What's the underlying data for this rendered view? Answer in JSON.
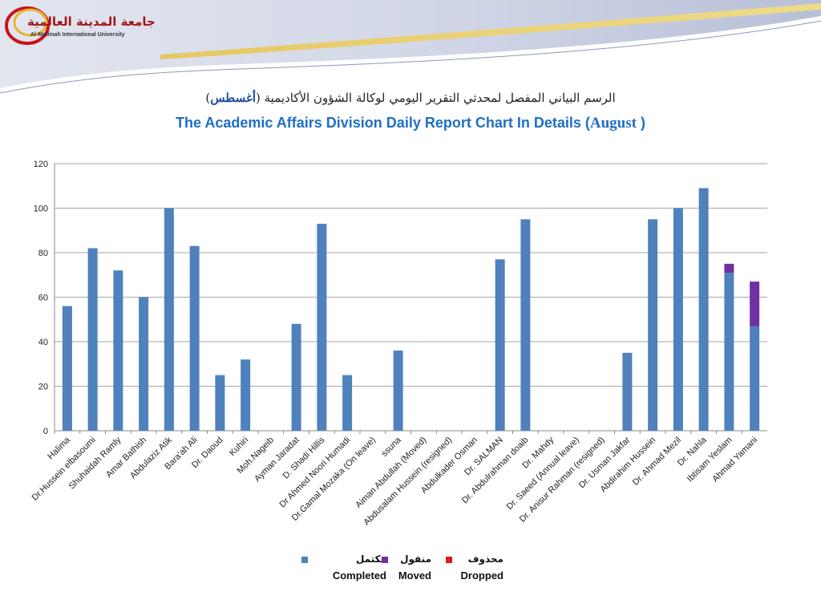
{
  "header": {
    "logo_arabic": "جامعة المدينة العالمية",
    "logo_english": "Al-Madinah International University"
  },
  "title": {
    "arabic": "الرسم البياني المفصل لمحدثي التقرير اليومي لوكالة الشؤون الأكاديمية (",
    "arabic_month": "أغسطس",
    "arabic_close": ")",
    "english": "The Academic Affairs Division Daily Report Chart In Details (",
    "english_month": "August",
    "english_close": " )"
  },
  "colors": {
    "completed": "#4f81bd",
    "moved": "#7030a0",
    "dropped": "#e8141c",
    "grid": "#888888",
    "title_blue": "#1f6fc0"
  },
  "legend": [
    {
      "arabic": "مكتمل",
      "english": "Completed",
      "color": "#4f81bd"
    },
    {
      "arabic": "منقول",
      "english": "Moved",
      "color": "#7030a0"
    },
    {
      "arabic": "محذوف",
      "english": "Dropped",
      "color": "#e8141c"
    }
  ],
  "chart_data": {
    "type": "bar",
    "stacked": true,
    "title": "The Academic Affairs Division Daily Report Chart In Details (August )",
    "xlabel": "",
    "ylabel": "",
    "ylim": [
      0,
      120
    ],
    "yticks": [
      0,
      20,
      40,
      60,
      80,
      100,
      120
    ],
    "grid": true,
    "legend_position": "bottom",
    "categories": [
      "Halima",
      "Dr.Hussein elbasoumi",
      "Shuhaidah Ramly",
      "Amar Bathish",
      "Abdulaziz Atik",
      "Bara'ah Ali",
      "Dr. Daoud",
      "Kuhiri",
      "Moh.Nageib",
      "Ayman Jaradat",
      "D. Shadi Hillis",
      "Dr Ahmed Noori Humadi",
      "Dr.Gamal Mozaka (On leave)",
      "ssuna",
      "Aiman Abdullah (Moved)",
      "Abdusalam Hussein (resigned)",
      "Abdulkader Osman",
      "Dr. SALMAN",
      "Dr. Abdulrahman doaib",
      "Dr. Mahdy",
      "Dr. Saeed (Annual leave)",
      "Dr. Anisur Rahman (resigned)",
      "Dr. Usman Jakfar",
      "Abdirahim Hussein",
      "Dr. Ahmad Mezil",
      "Dr. Nahla",
      "Ibtisam Yeslam",
      "Ahmad Yamani"
    ],
    "series": [
      {
        "name": "Completed",
        "values": [
          56,
          82,
          72,
          60,
          100,
          83,
          25,
          32,
          0,
          48,
          93,
          25,
          0,
          36,
          0,
          0,
          0,
          77,
          95,
          0,
          0,
          0,
          35,
          95,
          100,
          109,
          71,
          47
        ]
      },
      {
        "name": "Moved",
        "values": [
          0,
          0,
          0,
          0,
          0,
          0,
          0,
          0,
          0,
          0,
          0,
          0,
          0,
          0,
          0,
          0,
          0,
          0,
          0,
          0,
          0,
          0,
          0,
          0,
          0,
          0,
          4,
          20
        ]
      },
      {
        "name": "Dropped",
        "values": [
          0,
          0,
          0,
          0,
          0,
          0,
          0,
          0,
          0,
          0,
          0,
          0,
          0,
          0,
          0,
          0,
          0,
          0,
          0,
          0,
          0,
          0,
          0,
          0,
          0,
          0,
          0,
          0
        ]
      }
    ]
  }
}
